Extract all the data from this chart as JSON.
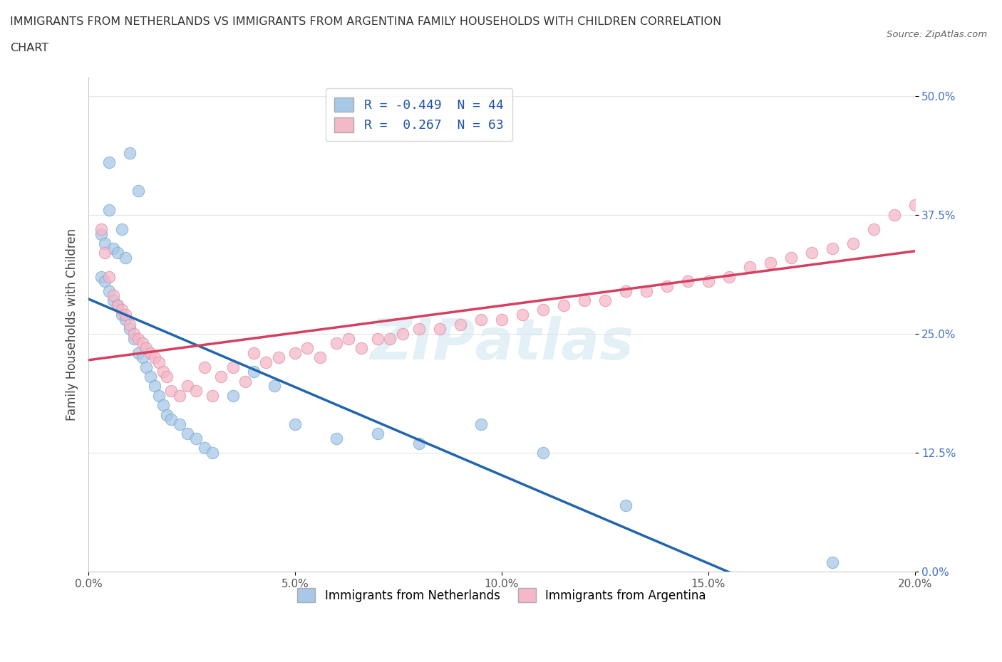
{
  "title_line1": "IMMIGRANTS FROM NETHERLANDS VS IMMIGRANTS FROM ARGENTINA FAMILY HOUSEHOLDS WITH CHILDREN CORRELATION",
  "title_line2": "CHART",
  "source": "Source: ZipAtlas.com",
  "ylabel": "Family Households with Children",
  "xlim": [
    0.0,
    0.2
  ],
  "ylim": [
    0.0,
    0.52
  ],
  "yticks": [
    0.0,
    0.125,
    0.25,
    0.375,
    0.5
  ],
  "ytick_labels": [
    "0.0%",
    "12.5%",
    "25.0%",
    "37.5%",
    "50.0%"
  ],
  "xticks": [
    0.0,
    0.05,
    0.1,
    0.15,
    0.2
  ],
  "xtick_labels": [
    "0.0%",
    "5.0%",
    "10.0%",
    "15.0%",
    "20.0%"
  ],
  "R_netherlands": -0.449,
  "N_netherlands": 44,
  "R_argentina": 0.267,
  "N_argentina": 63,
  "color_netherlands": "#a8c8e8",
  "color_argentina": "#f4b8c8",
  "line_color_netherlands": "#2166ac",
  "line_color_argentina": "#d44060",
  "dashed_line_color": "#bbbbbb",
  "netherlands_x": [
    0.005,
    0.01,
    0.005,
    0.008,
    0.012,
    0.003,
    0.004,
    0.006,
    0.007,
    0.009,
    0.003,
    0.004,
    0.005,
    0.006,
    0.007,
    0.008,
    0.009,
    0.01,
    0.011,
    0.012,
    0.013,
    0.014,
    0.015,
    0.016,
    0.017,
    0.018,
    0.019,
    0.02,
    0.022,
    0.024,
    0.026,
    0.028,
    0.03,
    0.035,
    0.04,
    0.045,
    0.05,
    0.06,
    0.07,
    0.08,
    0.095,
    0.11,
    0.13,
    0.18
  ],
  "netherlands_y": [
    0.43,
    0.44,
    0.38,
    0.36,
    0.4,
    0.355,
    0.345,
    0.34,
    0.335,
    0.33,
    0.31,
    0.305,
    0.295,
    0.285,
    0.28,
    0.27,
    0.265,
    0.255,
    0.245,
    0.23,
    0.225,
    0.215,
    0.205,
    0.195,
    0.185,
    0.175,
    0.165,
    0.16,
    0.155,
    0.145,
    0.14,
    0.13,
    0.125,
    0.185,
    0.21,
    0.195,
    0.155,
    0.14,
    0.145,
    0.135,
    0.155,
    0.125,
    0.07,
    0.01
  ],
  "argentina_x": [
    0.003,
    0.004,
    0.005,
    0.006,
    0.007,
    0.008,
    0.009,
    0.01,
    0.011,
    0.012,
    0.013,
    0.014,
    0.015,
    0.016,
    0.017,
    0.018,
    0.019,
    0.02,
    0.022,
    0.024,
    0.026,
    0.028,
    0.03,
    0.032,
    0.035,
    0.038,
    0.04,
    0.043,
    0.046,
    0.05,
    0.053,
    0.056,
    0.06,
    0.063,
    0.066,
    0.07,
    0.073,
    0.076,
    0.08,
    0.085,
    0.09,
    0.095,
    0.1,
    0.105,
    0.11,
    0.115,
    0.12,
    0.125,
    0.13,
    0.135,
    0.14,
    0.145,
    0.15,
    0.155,
    0.16,
    0.165,
    0.17,
    0.175,
    0.18,
    0.185,
    0.19,
    0.195,
    0.2
  ],
  "argentina_y": [
    0.36,
    0.335,
    0.31,
    0.29,
    0.28,
    0.275,
    0.27,
    0.26,
    0.25,
    0.245,
    0.24,
    0.235,
    0.23,
    0.225,
    0.22,
    0.21,
    0.205,
    0.19,
    0.185,
    0.195,
    0.19,
    0.215,
    0.185,
    0.205,
    0.215,
    0.2,
    0.23,
    0.22,
    0.225,
    0.23,
    0.235,
    0.225,
    0.24,
    0.245,
    0.235,
    0.245,
    0.245,
    0.25,
    0.255,
    0.255,
    0.26,
    0.265,
    0.265,
    0.27,
    0.275,
    0.28,
    0.285,
    0.285,
    0.295,
    0.295,
    0.3,
    0.305,
    0.305,
    0.31,
    0.32,
    0.325,
    0.33,
    0.335,
    0.34,
    0.345,
    0.36,
    0.375,
    0.385
  ],
  "legend1_label1": "R = -0.449  N = 44",
  "legend1_label2": "R =  0.267  N = 63",
  "legend2_label1": "Immigrants from Netherlands",
  "legend2_label2": "Immigrants from Argentina"
}
